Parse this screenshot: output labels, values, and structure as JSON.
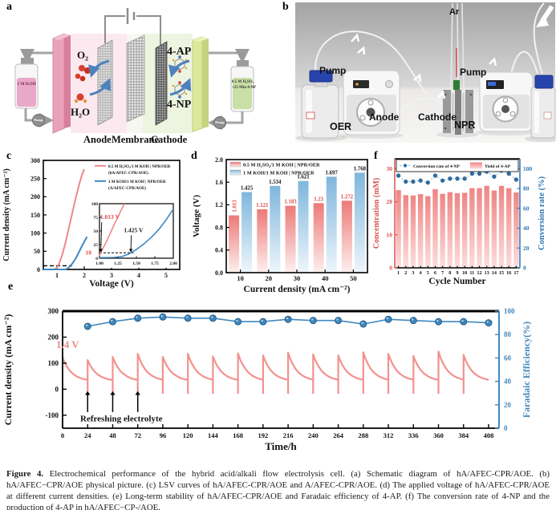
{
  "panels": {
    "a": {
      "label": "a",
      "o2": "O₂",
      "h2o": "H₂O",
      "ap": "4-AP",
      "np": "4-NP",
      "anode": "Anode",
      "membrane": "Membrane",
      "cathode": "Cathode",
      "left_bottle": "1 M KOH",
      "right_bottle_1": "0.5 M H₂SO₄",
      "right_bottle_2": "+25 Mm 4-NP",
      "pump_left": "Pump",
      "pump_right": "Pump"
    },
    "b": {
      "label": "b",
      "ar": "Ar",
      "pump_left": "Pump",
      "pump_right": "Pump",
      "anode": "Anode",
      "cathode": "Cathode",
      "oer": "OER",
      "npr": "NPR"
    },
    "c": {
      "label": "c"
    },
    "d": {
      "label": "d"
    },
    "e": {
      "label": "e"
    },
    "f": {
      "label": "f"
    }
  },
  "caption": {
    "label": "Figure 4.",
    "text": " Electrochemical performance of the hybrid acid/alkali flow electrolysis cell. (a) Schematic diagram of hA/AFEC-CPR/AOE. (b) hA/AFEC−CPR/AOE physical picture. (c) LSV curves of hA/AFEC-CPR/AOE and A/AFEC-CPR/AOE. (d) The applied voltage of hA/AFEC-CPR/AOE at different current densities. (e) Long-term stability of hA/AFEC-CPR/AOE and Faradaic efficiency of 4-AP. (f) The conversion rate of 4-NP and the production of 4-AP in hA/AFEC−CP-/AOE."
  },
  "chart_data": [
    {
      "panel": "c",
      "type": "line",
      "xlabel": "Voltage (V)",
      "ylabel": "Current density (mA cm⁻²)",
      "xlim": [
        0.5,
        5.5
      ],
      "ylim": [
        0,
        300
      ],
      "xticks": [
        1,
        2,
        3,
        4,
        5
      ],
      "yticks": [
        0,
        50,
        100,
        150,
        200,
        250,
        300
      ],
      "ref_line_y": 10,
      "legend": [
        {
          "label1": "0.5 M H₂SO₄/1 M KOH | NPR/OER",
          "label2": "(hA/AFEC-CPR/AOE)",
          "color": "#ef8887"
        },
        {
          "label1": "1 M KOH/1 M KOH | NPR/OER",
          "label2": "(A/AFEC-CPR/AOE)",
          "color": "#3f87c2"
        }
      ],
      "series": [
        {
          "name": "hA/AFEC-CPR/AOE",
          "color": "#ef8887",
          "points": [
            [
              0.5,
              0
            ],
            [
              0.9,
              0
            ],
            [
              1.0,
              5
            ],
            [
              1.05,
              12
            ],
            [
              1.1,
              20
            ],
            [
              1.2,
              42
            ],
            [
              1.3,
              70
            ],
            [
              1.4,
              102
            ],
            [
              1.5,
              135
            ],
            [
              1.6,
              168
            ],
            [
              1.7,
              200
            ],
            [
              1.8,
              230
            ],
            [
              1.9,
              256
            ],
            [
              2.0,
              276
            ]
          ]
        },
        {
          "name": "A/AFEC-CPR/AOE",
          "color": "#3f87c2",
          "points": [
            [
              0.5,
              0
            ],
            [
              1.3,
              0
            ],
            [
              1.4,
              3
            ],
            [
              1.5,
              10
            ],
            [
              1.6,
              20
            ],
            [
              1.7,
              32
            ],
            [
              1.8,
              47
            ],
            [
              1.9,
              62
            ],
            [
              2.0,
              76
            ],
            [
              2.1,
              90
            ]
          ]
        }
      ],
      "inset": {
        "xlim": [
          1.0,
          2.0
        ],
        "ylim": [
          0,
          100
        ],
        "xticks": [
          "1.00",
          "1.25",
          "1.50",
          "1.75",
          "2.00"
        ],
        "yticks": [
          0,
          25,
          50,
          75,
          100
        ],
        "ref_line_y": 10,
        "ref_label": "10",
        "annotations": [
          {
            "text": "1.013 V",
            "color": "#e04b4b",
            "x": 1.013
          },
          {
            "text": "1.425 V",
            "color": "#1a1a1a",
            "x": 1.425
          }
        ],
        "series": [
          {
            "color": "#ef8887",
            "points": [
              [
                1.0,
                4
              ],
              [
                1.013,
                10
              ],
              [
                1.05,
                19
              ],
              [
                1.1,
                32
              ],
              [
                1.15,
                47
              ],
              [
                1.2,
                62
              ],
              [
                1.25,
                76
              ],
              [
                1.3,
                90
              ],
              [
                1.34,
                100
              ]
            ]
          },
          {
            "color": "#3f87c2",
            "points": [
              [
                1.0,
                1
              ],
              [
                1.2,
                1.5
              ],
              [
                1.3,
                3
              ],
              [
                1.4,
                8
              ],
              [
                1.425,
                10
              ],
              [
                1.5,
                16
              ],
              [
                1.6,
                26
              ],
              [
                1.7,
                38
              ],
              [
                1.8,
                52
              ],
              [
                1.9,
                70
              ],
              [
                2.0,
                90
              ]
            ]
          }
        ]
      }
    },
    {
      "panel": "d",
      "type": "bar",
      "xlabel": "Current density (mA cm⁻²)",
      "ylabel": "Voltage (V)",
      "categories": [
        "10",
        "20",
        "30",
        "40",
        "50"
      ],
      "ylim": [
        0,
        2.0
      ],
      "yticks": [
        "0.0",
        "0.4",
        "0.8",
        "1.2",
        "1.6",
        "2.0"
      ],
      "series": [
        {
          "name": "0.5 M H₂SO₄/1 M KOH | NPR/OER",
          "values": [
            1.013,
            1.121,
            1.183,
            1.23,
            1.272
          ],
          "labels": [
            "1.013",
            "1.121",
            "1.183",
            "1.23",
            "1.272"
          ],
          "color_top": "#ec7a78",
          "color_bottom": "#fdf0ef",
          "label_color": "#e04b4b"
        },
        {
          "name": "1 M KOH/1 M KOH | NPR/OER",
          "values": [
            1.425,
            1.534,
            1.621,
            1.697,
            1.768
          ],
          "labels": [
            "1.425",
            "1.534",
            "1.621",
            "1.697",
            "1.768"
          ],
          "color_top": "#7fb6dc",
          "color_bottom": "#eef6fc",
          "label_color": "#111111"
        }
      ]
    },
    {
      "panel": "e",
      "type": "line",
      "xlabel": "Time/h",
      "ylabel": "Current density (mA cm⁻²)",
      "ylabel_right": "Faradaic Efficiency(%)",
      "xlim": [
        0,
        418
      ],
      "xticks": [
        0,
        24,
        48,
        72,
        96,
        120,
        144,
        168,
        192,
        216,
        240,
        264,
        288,
        312,
        336,
        360,
        384,
        408
      ],
      "ylim": [
        -150,
        300
      ],
      "yticks": [
        -100,
        0,
        100,
        200,
        300
      ],
      "ylim_right": [
        0,
        100
      ],
      "yticks_right": [
        0,
        20,
        40,
        60,
        80,
        100
      ],
      "voltage_label": "1.4 V",
      "refresh_label": "Refreshing electrolyte",
      "arrow_x": [
        24,
        48,
        72
      ],
      "cycle_hours": 24,
      "trough": 30,
      "dip": -15,
      "peaks": [
        122,
        112,
        124,
        136,
        124,
        136,
        126,
        138,
        130,
        140,
        134,
        130,
        142,
        136,
        128,
        145,
        132
      ],
      "fe_x": [
        24,
        48,
        72,
        96,
        120,
        144,
        168,
        192,
        216,
        240,
        264,
        288,
        312,
        336,
        360,
        384,
        408
      ],
      "fe_y": [
        87,
        91,
        94,
        95,
        94,
        94,
        91,
        91,
        93,
        92,
        92,
        89,
        93,
        92,
        91,
        91,
        90
      ],
      "colors": {
        "current": "#f2928f",
        "fe": "#4288bd"
      }
    },
    {
      "panel": "f",
      "type": "bar",
      "xlabel": "Cycle Number",
      "ylabel": "Concentration (mM)",
      "ylabel_right": "Conversion rate (%)",
      "categories": [
        "1",
        "2",
        "3",
        "4",
        "5",
        "6",
        "7",
        "8",
        "9",
        "10",
        "11",
        "12",
        "13",
        "14",
        "15",
        "16",
        "17"
      ],
      "ylim": [
        0,
        33
      ],
      "yticks": [
        0,
        10,
        20,
        30
      ],
      "ylim_right": [
        0,
        110
      ],
      "yticks_right": [
        0,
        20,
        40,
        60,
        80,
        100
      ],
      "bars": {
        "name": "Yield of 4-AP",
        "values": [
          23.5,
          22.0,
          21.9,
          22.3,
          21.7,
          23.8,
          22.4,
          22.9,
          22.6,
          22.7,
          24.1,
          24.1,
          24.8,
          23.4,
          24.8,
          24.1,
          22.8
        ],
        "color_top": "#ee8583",
        "color_bottom": "#fcdedd"
      },
      "dots": {
        "name": "Conversion rate of 4-NP",
        "values": [
          93,
          87,
          87,
          88,
          86,
          93,
          88,
          90,
          90,
          90,
          95,
          95,
          97,
          92,
          98,
          95,
          89
        ],
        "color": "#2e6fa8"
      },
      "axis_colors": {
        "left": "#d95352",
        "right": "#2e76b5"
      }
    }
  ]
}
